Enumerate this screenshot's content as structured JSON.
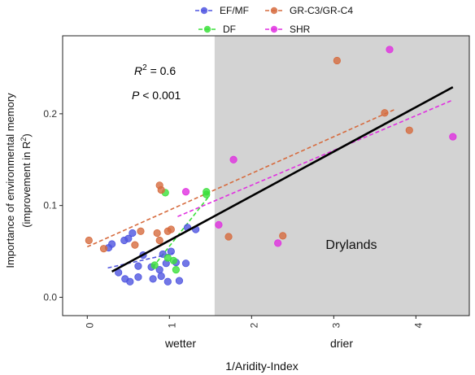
{
  "chart_data": {
    "type": "scatter",
    "xlabel": "1/Aridity-Index",
    "ylabel_line1": "Importance of environmental memory",
    "ylabel_line2": "(improvement in R",
    "ylabel_sup": "2",
    "ylabel_close": ")",
    "xlim": [
      -0.3,
      4.65
    ],
    "ylim": [
      -0.02,
      0.285
    ],
    "xticks": [
      0,
      1,
      2,
      3,
      4
    ],
    "yticks": [
      0.0,
      0.1,
      0.2
    ],
    "xtick_labels": [
      "0",
      "1",
      "2",
      "3",
      "4"
    ],
    "ytick_labels": [
      "0.0",
      "0.1",
      "0.2"
    ],
    "wetter_label": "wetter",
    "drier_label": "drier",
    "region": {
      "label": "Drylands",
      "x_start": 1.55,
      "color": "#d3d3d3"
    },
    "annotation": {
      "r2_label": "R",
      "r2_sup": "2",
      "r2_value": " = 0.6",
      "p_label": "P",
      "p_value": " < 0.001"
    },
    "regression": {
      "x": [
        0.3,
        4.45
      ],
      "y": [
        0.028,
        0.229
      ],
      "color": "#000000"
    },
    "series": [
      {
        "name": "EF/MF",
        "color": "#4f55e0",
        "points": [
          [
            0.38,
            0.027
          ],
          [
            0.46,
            0.02
          ],
          [
            0.52,
            0.017
          ],
          [
            0.62,
            0.022
          ],
          [
            0.8,
            0.02
          ],
          [
            0.9,
            0.023
          ],
          [
            0.98,
            0.017
          ],
          [
            1.12,
            0.018
          ],
          [
            0.62,
            0.034
          ],
          [
            0.78,
            0.033
          ],
          [
            0.88,
            0.03
          ],
          [
            0.96,
            0.037
          ],
          [
            1.02,
            0.05
          ],
          [
            1.08,
            0.038
          ],
          [
            1.2,
            0.037
          ],
          [
            0.68,
            0.046
          ],
          [
            0.92,
            0.047
          ],
          [
            0.26,
            0.054
          ],
          [
            0.3,
            0.058
          ],
          [
            0.45,
            0.062
          ],
          [
            0.5,
            0.064
          ],
          [
            0.55,
            0.07
          ],
          [
            1.22,
            0.076
          ],
          [
            1.32,
            0.074
          ]
        ],
        "trend": {
          "x": [
            0.25,
            1.05
          ],
          "y": [
            0.032,
            0.048
          ]
        }
      },
      {
        "name": "DF",
        "color": "#3be03b",
        "points": [
          [
            0.95,
            0.114
          ],
          [
            1.45,
            0.115
          ],
          [
            1.45,
            0.112
          ],
          [
            0.82,
            0.035
          ],
          [
            0.98,
            0.043
          ],
          [
            1.05,
            0.04
          ],
          [
            1.08,
            0.03
          ]
        ],
        "trend": {
          "x": [
            0.8,
            1.48
          ],
          "y": [
            0.033,
            0.11
          ]
        }
      },
      {
        "name": "GR-C3/GR-C4",
        "color": "#d66b3e",
        "points": [
          [
            0.02,
            0.062
          ],
          [
            0.2,
            0.053
          ],
          [
            0.58,
            0.057
          ],
          [
            0.65,
            0.072
          ],
          [
            0.85,
            0.07
          ],
          [
            0.88,
            0.062
          ],
          [
            0.98,
            0.072
          ],
          [
            1.02,
            0.074
          ],
          [
            0.88,
            0.122
          ],
          [
            0.9,
            0.117
          ],
          [
            1.72,
            0.066
          ],
          [
            2.38,
            0.067
          ],
          [
            3.04,
            0.258
          ],
          [
            3.62,
            0.201
          ],
          [
            3.92,
            0.182
          ]
        ],
        "trend": {
          "x": [
            0.0,
            3.75
          ],
          "y": [
            0.055,
            0.205
          ]
        }
      },
      {
        "name": "SHR",
        "color": "#e030e0",
        "points": [
          [
            1.2,
            0.115
          ],
          [
            1.6,
            0.079
          ],
          [
            1.78,
            0.15
          ],
          [
            2.32,
            0.059
          ],
          [
            3.68,
            0.27
          ],
          [
            4.45,
            0.175
          ]
        ],
        "trend": {
          "x": [
            1.1,
            4.45
          ],
          "y": [
            0.088,
            0.215
          ]
        }
      }
    ]
  }
}
